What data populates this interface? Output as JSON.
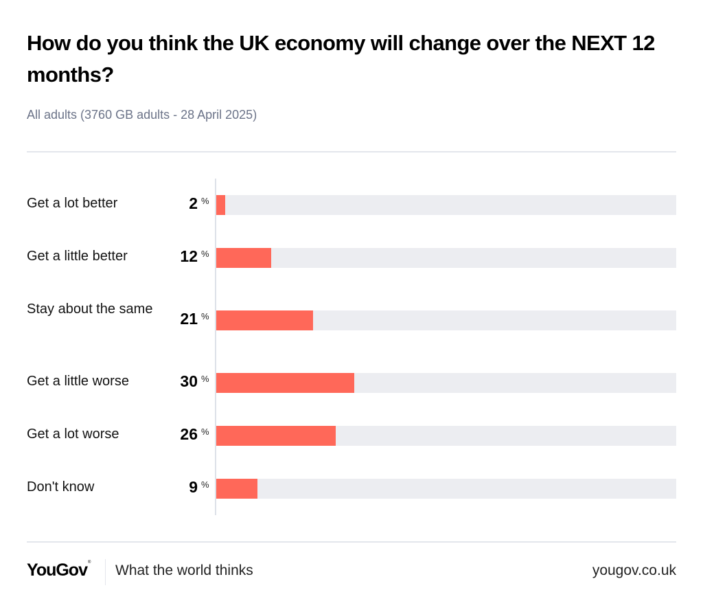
{
  "chart_data": {
    "type": "bar",
    "orientation": "horizontal",
    "title": "How do you think the UK economy will change over the NEXT 12 months?",
    "subtitle": "All adults (3760 GB adults - 28 April 2025)",
    "categories": [
      "Get a lot better",
      "Get a little better",
      "Stay about the same",
      "Get a little worse",
      "Get a lot worse",
      "Don't know"
    ],
    "values": [
      2,
      12,
      21,
      30,
      26,
      9
    ],
    "unit": "%",
    "xlim": [
      0,
      100
    ],
    "xlabel": "",
    "ylabel": "",
    "grid": false,
    "legend": null
  },
  "colors": {
    "bar": "#ff6859",
    "track": "#ecedf1",
    "subtitle": "#6b7388"
  },
  "footer": {
    "brand": "YouGov",
    "trademark": "®",
    "tagline": "What the world thinks",
    "url": "yougov.co.uk"
  }
}
